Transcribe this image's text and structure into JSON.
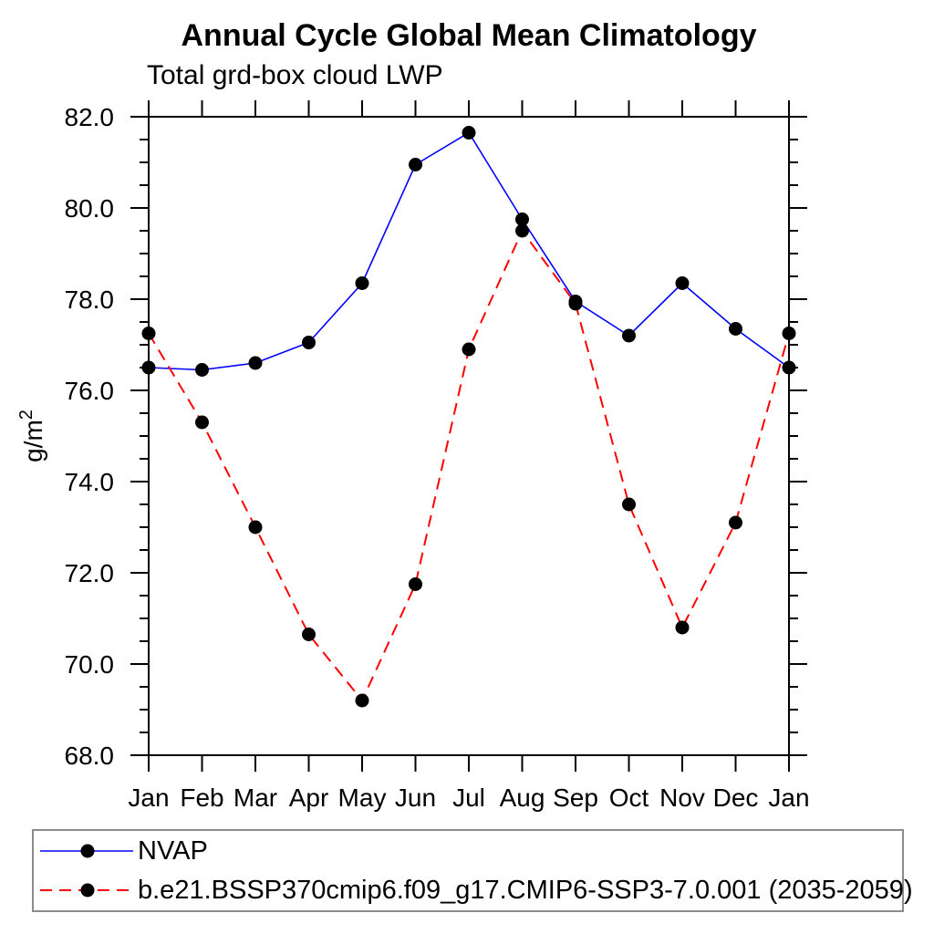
{
  "title": "Annual Cycle Global Mean Climatology",
  "subtitle": "Total grd-box cloud LWP",
  "chart_data": {
    "type": "line",
    "title": "Annual Cycle Global Mean Climatology",
    "subtitle": "Total grd-box cloud LWP",
    "ylabel_base": "g/m",
    "ylabel_sup": "2",
    "x_categories": [
      "Jan",
      "Feb",
      "Mar",
      "Apr",
      "May",
      "Jun",
      "Jul",
      "Aug",
      "Sep",
      "Oct",
      "Nov",
      "Dec",
      "Jan"
    ],
    "ylim": [
      68.0,
      82.0
    ],
    "ytick_major_interval": 2.0,
    "ytick_minor_interval": 0.5,
    "grid": false,
    "legend_position": "bottom-left",
    "ytick_labels": [
      {
        "value": 68.0,
        "label": "68.0"
      },
      {
        "value": 70.0,
        "label": "70.0"
      },
      {
        "value": 72.0,
        "label": "72.0"
      },
      {
        "value": 74.0,
        "label": "74.0"
      },
      {
        "value": 76.0,
        "label": "76.0"
      },
      {
        "value": 78.0,
        "label": "78.0"
      },
      {
        "value": 80.0,
        "label": "80.0"
      },
      {
        "value": 82.0,
        "label": "82.0"
      }
    ],
    "series": [
      {
        "name": "NVAP",
        "color": "#0000ff",
        "line_style": "solid",
        "marker": "filled-circle",
        "marker_color": "#000000",
        "values": [
          76.5,
          76.45,
          76.6,
          77.05,
          78.35,
          80.95,
          81.65,
          79.75,
          77.95,
          77.2,
          78.35,
          77.35,
          76.5
        ]
      },
      {
        "name": "b.e21.BSSP370cmip6.f09_g17.CMIP6-SSP3-7.0.001 (2035-2059)",
        "color": "#ff0000",
        "line_style": "dashed",
        "marker": "filled-circle",
        "marker_color": "#000000",
        "values": [
          77.25,
          75.3,
          73.0,
          70.65,
          69.2,
          71.75,
          76.9,
          79.5,
          77.9,
          73.5,
          70.8,
          73.1,
          77.25
        ]
      }
    ]
  },
  "legend": {
    "entries": [
      {
        "label": "NVAP",
        "color": "#0000ff",
        "style": "solid"
      },
      {
        "label": "b.e21.BSSP370cmip6.f09_g17.CMIP6-SSP3-7.0.001 (2035-2059)",
        "color": "#ff0000",
        "style": "dashed"
      }
    ]
  }
}
